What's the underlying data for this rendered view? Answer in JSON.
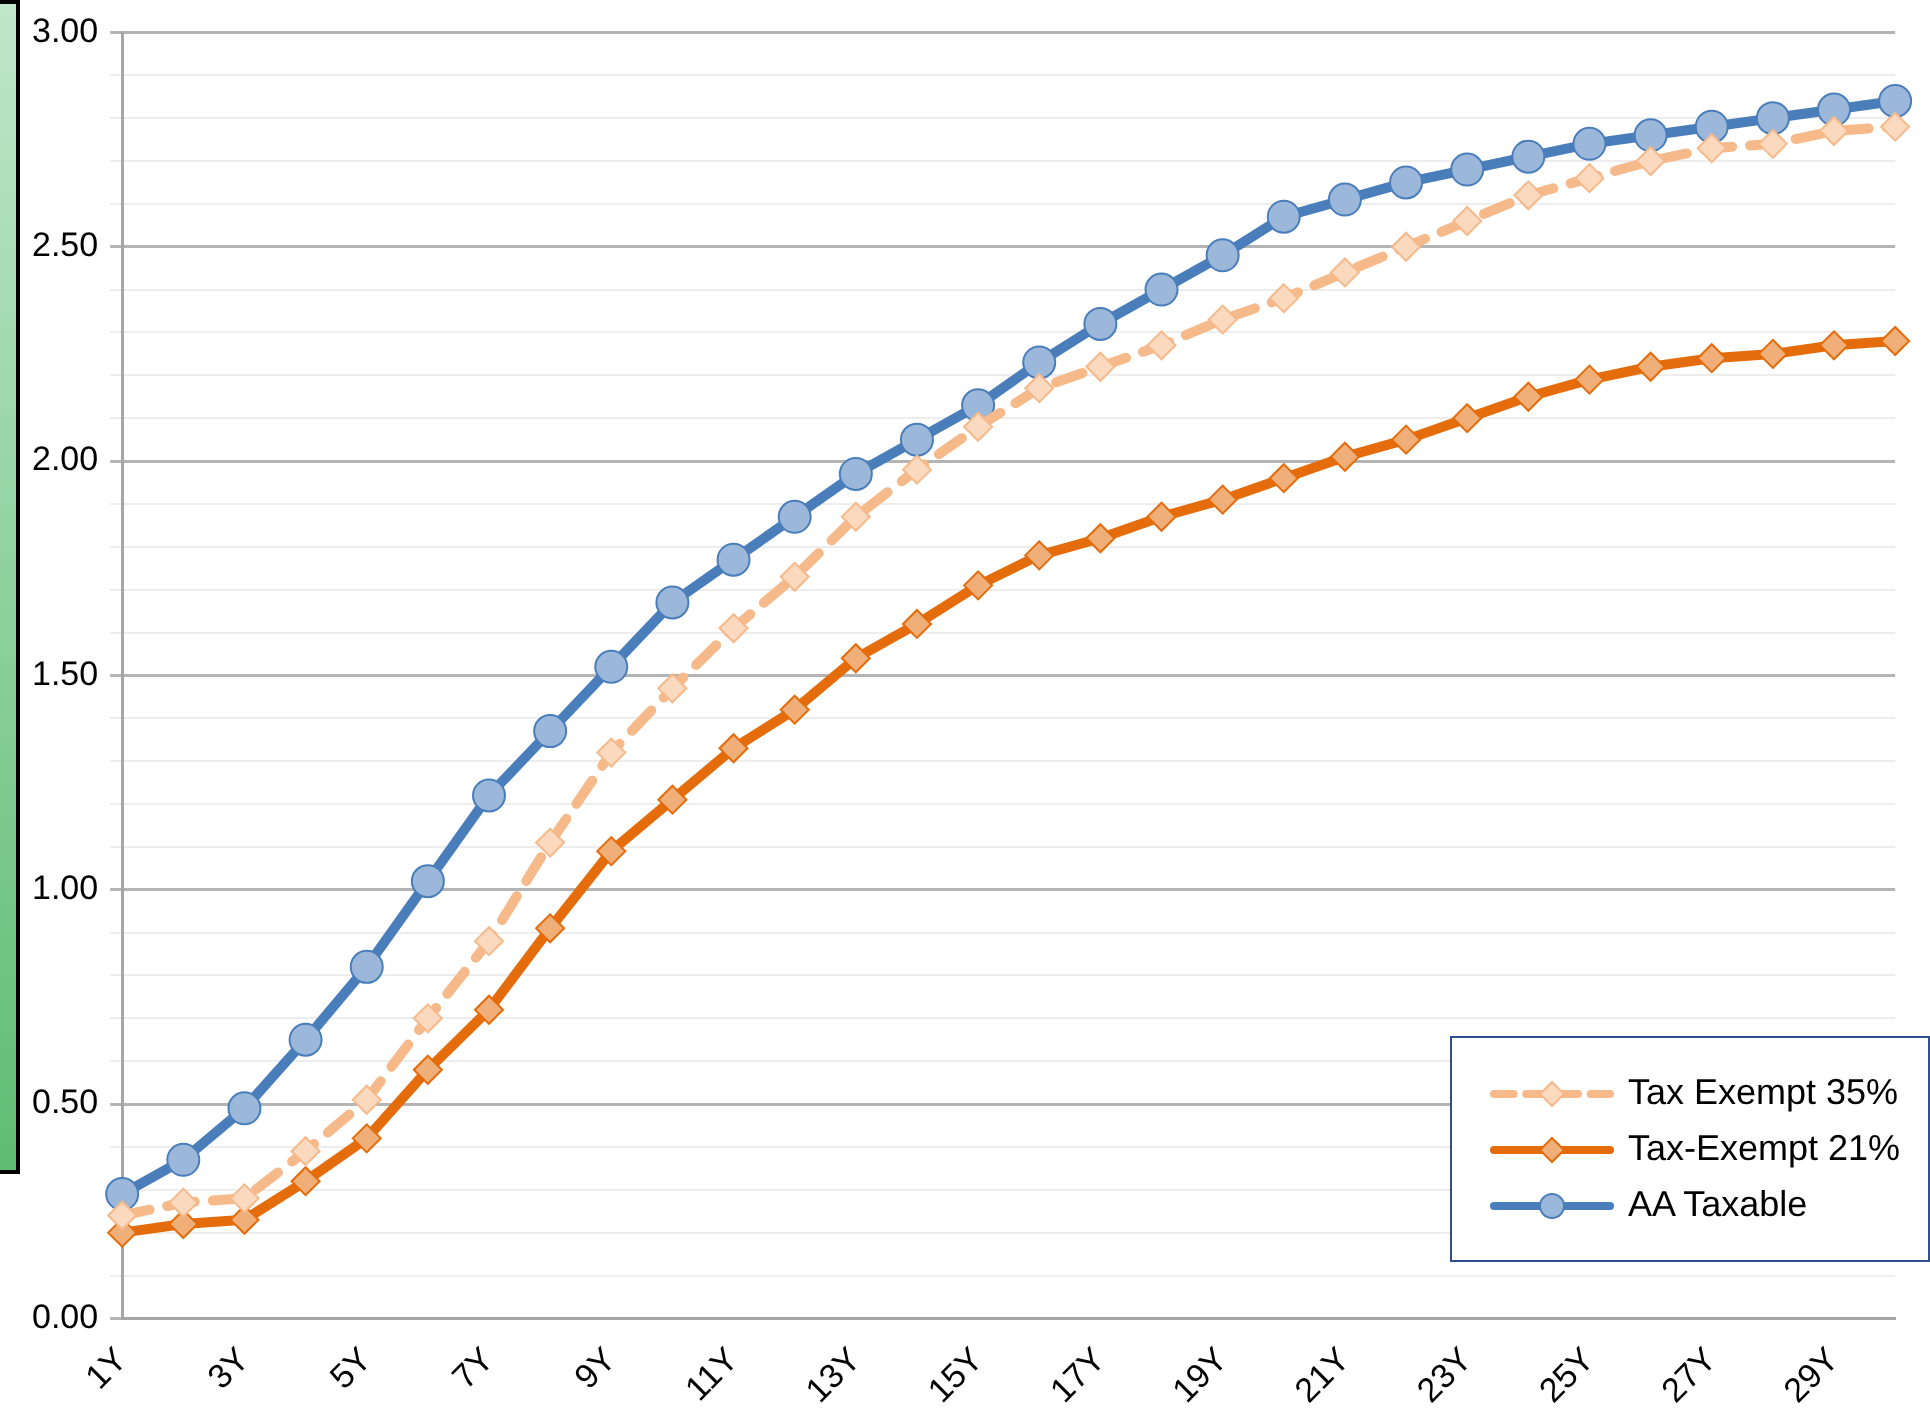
{
  "chart_data": {
    "type": "line",
    "categories": [
      "1Y",
      null,
      "3Y",
      null,
      "5Y",
      null,
      "7Y",
      null,
      "9Y",
      null,
      "11Y",
      null,
      "13Y",
      null,
      "15Y",
      null,
      "17Y",
      null,
      "19Y",
      null,
      "21Y",
      null,
      "23Y",
      null,
      "25Y",
      null,
      "27Y",
      null,
      "29Y",
      null
    ],
    "series": [
      {
        "name": "Tax Exempt 35%",
        "color": "#f6b98a",
        "marker": "diamond",
        "line_style": "dashed",
        "values": [
          0.24,
          0.27,
          0.28,
          0.39,
          0.51,
          0.7,
          0.88,
          1.11,
          1.32,
          1.47,
          1.61,
          1.73,
          1.87,
          1.98,
          2.08,
          2.17,
          2.22,
          2.27,
          2.33,
          2.38,
          2.44,
          2.5,
          2.56,
          2.62,
          2.66,
          2.7,
          2.73,
          2.74,
          2.77,
          2.78
        ]
      },
      {
        "name": "Tax-Exempt 21%",
        "color": "#e46c0a",
        "marker": "diamond",
        "line_style": "solid",
        "values": [
          0.2,
          0.22,
          0.23,
          0.32,
          0.42,
          0.58,
          0.72,
          0.91,
          1.09,
          1.21,
          1.33,
          1.42,
          1.54,
          1.62,
          1.71,
          1.78,
          1.82,
          1.87,
          1.91,
          1.96,
          2.01,
          2.05,
          2.1,
          2.15,
          2.19,
          2.22,
          2.24,
          2.25,
          2.27,
          2.28
        ]
      },
      {
        "name": "AA Taxable",
        "color": "#4a7ebb",
        "marker": "circle",
        "line_style": "solid",
        "values": [
          0.29,
          0.37,
          0.49,
          0.65,
          0.82,
          1.02,
          1.22,
          1.37,
          1.52,
          1.67,
          1.77,
          1.87,
          1.97,
          2.05,
          2.13,
          2.23,
          2.32,
          2.4,
          2.48,
          2.57,
          2.61,
          2.65,
          2.68,
          2.71,
          2.74,
          2.76,
          2.78,
          2.8,
          2.82,
          2.84
        ]
      }
    ],
    "ylim": [
      0,
      3
    ],
    "yticks": [
      {
        "value": 0,
        "label": "0.00"
      },
      {
        "value": 0.1,
        "label": null
      },
      {
        "value": 0.2,
        "label": null
      },
      {
        "value": 0.3,
        "label": null
      },
      {
        "value": 0.4,
        "label": null
      },
      {
        "value": 0.5,
        "label": "0.50"
      },
      {
        "value": 0.6,
        "label": null
      },
      {
        "value": 0.7,
        "label": null
      },
      {
        "value": 0.8,
        "label": null
      },
      {
        "value": 0.9,
        "label": null
      },
      {
        "value": 1,
        "label": "1.00"
      },
      {
        "value": 1.1,
        "label": null
      },
      {
        "value": 1.2,
        "label": null
      },
      {
        "value": 1.3,
        "label": null
      },
      {
        "value": 1.4,
        "label": null
      },
      {
        "value": 1.5,
        "label": "1.50"
      },
      {
        "value": 1.6,
        "label": null
      },
      {
        "value": 1.7,
        "label": null
      },
      {
        "value": 1.8,
        "label": null
      },
      {
        "value": 1.9,
        "label": null
      },
      {
        "value": 2,
        "label": "2.00"
      },
      {
        "value": 2.1,
        "label": null
      },
      {
        "value": 2.2,
        "label": null
      },
      {
        "value": 2.3,
        "label": null
      },
      {
        "value": 2.4,
        "label": null
      },
      {
        "value": 2.5,
        "label": "2.50"
      },
      {
        "value": 2.6,
        "label": null
      },
      {
        "value": 2.7,
        "label": null
      },
      {
        "value": 2.8,
        "label": null
      },
      {
        "value": 2.9,
        "label": null
      },
      {
        "value": 3,
        "label": "3.00"
      }
    ],
    "grid": "y",
    "legend": "bottom right"
  }
}
